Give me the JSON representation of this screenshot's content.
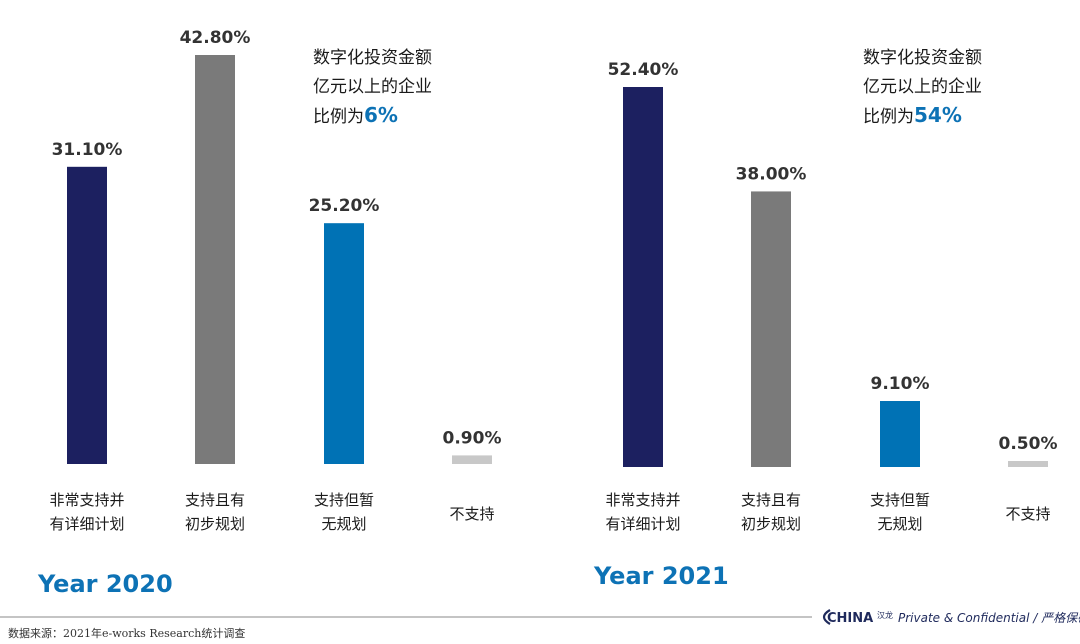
{
  "colors": {
    "navy": "#1c2060",
    "gray": "#7a7a7a",
    "blue": "#0072b5",
    "light_gray": "#c8c8c8",
    "accent": "#0d72b5",
    "brand": "#1f2a5c"
  },
  "chart_data": [
    {
      "type": "bar",
      "title": "Year 2020",
      "categories": [
        "非常支持并\n有详细计划",
        "支持且有\n初步规划",
        "支持但暂\n无规划",
        "不支持"
      ],
      "values": [
        31.1,
        42.8,
        25.2,
        0.9
      ],
      "value_labels": [
        "31.10%",
        "42.80%",
        "25.20%",
        "0.90%"
      ],
      "bar_colors": [
        "navy",
        "gray",
        "blue",
        "light_gray"
      ],
      "ylim": [
        0,
        42.8
      ],
      "grid": false,
      "note": {
        "line1": "数字化投资金额",
        "line2": "亿元以上的企业",
        "line3": "比例为",
        "highlight": "6%"
      }
    },
    {
      "type": "bar",
      "title": "Year 2021",
      "categories": [
        "非常支持并\n有详细计划",
        "支持且有\n初步规划",
        "支持但暂\n无规划",
        "不支持"
      ],
      "values": [
        52.4,
        38.0,
        9.1,
        0.5
      ],
      "value_labels": [
        "52.40%",
        "38.00%",
        "9.10%",
        "0.50%"
      ],
      "bar_colors": [
        "navy",
        "gray",
        "blue",
        "light_gray"
      ],
      "ylim": [
        0,
        52.4
      ],
      "grid": false,
      "note": {
        "line1": "数字化投资金额",
        "line2": "亿元以上的企业",
        "line3": "比例为",
        "highlight": "54%"
      }
    }
  ],
  "footer": {
    "source": "数据来源：2021年e-works Research统计调查",
    "brand_logo": "CHINA",
    "brand_logo_sub": "汉龙",
    "confidential": "Private & Confidential / 严格保密"
  }
}
